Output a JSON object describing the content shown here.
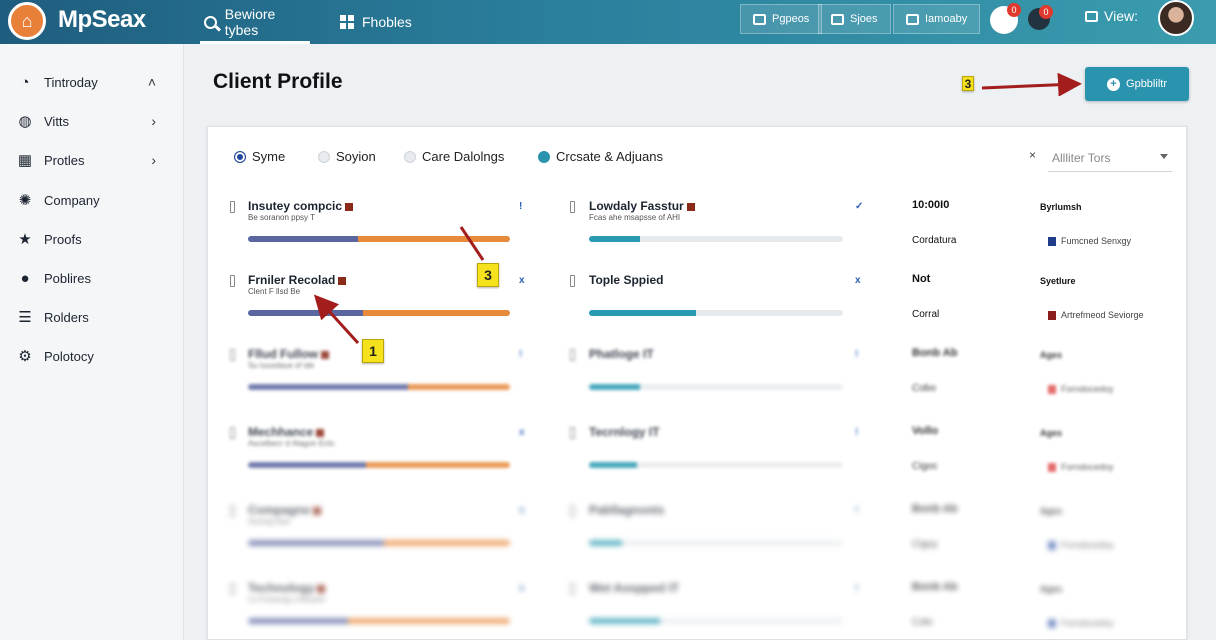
{
  "topbar": {
    "brand": "MpSeax",
    "tabs": [
      {
        "label": "Bewiore tybes",
        "icon": "search-icon"
      },
      {
        "label": "Fhobles",
        "icon": "grid-icon"
      }
    ],
    "buttons": [
      {
        "label": "Pgpeos"
      },
      {
        "label": "Sjoes"
      },
      {
        "label": "Iamoaby"
      }
    ],
    "notif_count_1": "0",
    "notif_count_2": "0",
    "view_label": "View:"
  },
  "sidebar": {
    "items": [
      {
        "label": "Tintroday",
        "icon": "gauge-icon",
        "chevron": "˄"
      },
      {
        "label": "Vitts",
        "icon": "globe-icon",
        "chevron": "›"
      },
      {
        "label": "Protles",
        "icon": "grid-icon",
        "chevron": "›"
      },
      {
        "label": "Company",
        "icon": "network-icon",
        "chevron": ""
      },
      {
        "label": "Proofs",
        "icon": "star-icon",
        "chevron": ""
      },
      {
        "label": "Poblires",
        "icon": "pin-icon",
        "chevron": ""
      },
      {
        "label": "Rolders",
        "icon": "list-icon",
        "chevron": ""
      },
      {
        "label": "Polotocy",
        "icon": "gear-icon",
        "chevron": ""
      }
    ]
  },
  "header": {
    "title": "Client Profile",
    "badge_top": "3",
    "add_button": "Gpbbliltr"
  },
  "filters": {
    "options": [
      {
        "label": "Syme",
        "state": "selected-blue"
      },
      {
        "label": "Soyion",
        "state": "off"
      },
      {
        "label": "Care Dalolngs",
        "state": "off"
      },
      {
        "label": "Crcsate & Adjuans",
        "state": "selected-teal"
      }
    ],
    "clear": "×",
    "select_placeholder": "Allliter Tors"
  },
  "rows": [
    {
      "left": {
        "title": "Insutey compcic",
        "sub": "Be soranon ppsy T",
        "mark": "!",
        "blue": 42,
        "orange": 58
      },
      "mid": {
        "title": "Lowdaly Fasstur",
        "sub": "Fcas ahe msapsse of AHI",
        "mark": "✓",
        "teal": 20
      },
      "col3": {
        "a": "10:00I0",
        "b": "Cordatura"
      },
      "col4": {
        "a": "Byrlumsh",
        "b": "Fumcned Senxgy",
        "color": "#1f3d8a"
      }
    },
    {
      "left": {
        "title": "Frniler Recolad",
        "sub": "Clent F llsd Be",
        "mark": "x",
        "blue": 44,
        "orange": 56
      },
      "mid": {
        "title": "Tople Sppied",
        "sub": "",
        "mark": "x",
        "teal": 42
      },
      "col3": {
        "a": "Not",
        "b": "Corral"
      },
      "col4": {
        "a": "Syetlure",
        "b": "Artrefmeod Seviorge",
        "color": "#8b1d1d"
      }
    },
    {
      "left": {
        "title": "Fllud Fullow",
        "sub": "Su tuusdaue sf ide",
        "mark": "!",
        "blue": 61,
        "orange": 39
      },
      "mid": {
        "title": "Phatloge IT",
        "sub": "",
        "mark": "!",
        "teal": 20
      },
      "col3": {
        "a": "Bonb Ab",
        "b": "Cobo"
      },
      "col4": {
        "a": "Ages",
        "b": "Forndocedoy",
        "color": "#e05050"
      }
    },
    {
      "left": {
        "title": "Mechhance",
        "sub": "Ascelbecr d Alagon Eclo",
        "mark": "x",
        "blue": 45,
        "orange": 55
      },
      "mid": {
        "title": "Tecrnlogy IT",
        "sub": "",
        "mark": "!",
        "teal": 19
      },
      "col3": {
        "a": "Vollo",
        "b": "Cigoc"
      },
      "col4": {
        "a": "Ages",
        "b": "Forndocedoy",
        "color": "#e05050"
      }
    },
    {
      "left": {
        "title": "Compagne",
        "sub": "Aurnsg Eao",
        "mark": "x",
        "blue": 52,
        "orange": 48
      },
      "mid": {
        "title": "Pabllagnonts",
        "sub": "",
        "mark": "!",
        "teal": 13
      },
      "col3": {
        "a": "Bonb Ab",
        "b": "Cigoy"
      },
      "col4": {
        "a": "Ages",
        "b": "Forndocedoy",
        "color": "#4a6ab0"
      }
    },
    {
      "left": {
        "title": "Technology",
        "sub": "Lo Forsucig o Aeuyon",
        "mark": "x",
        "blue": 38,
        "orange": 62
      },
      "mid": {
        "title": "Wet Aospped IT",
        "sub": "",
        "mark": "!",
        "teal": 28
      },
      "col3": {
        "a": "Bonb Ab",
        "b": "Colo"
      },
      "col4": {
        "a": "Ages",
        "b": "Forndocedoy",
        "color": "#4a6ab0"
      }
    }
  ],
  "annotations": {
    "badge_a": "3",
    "badge_b": "1"
  }
}
